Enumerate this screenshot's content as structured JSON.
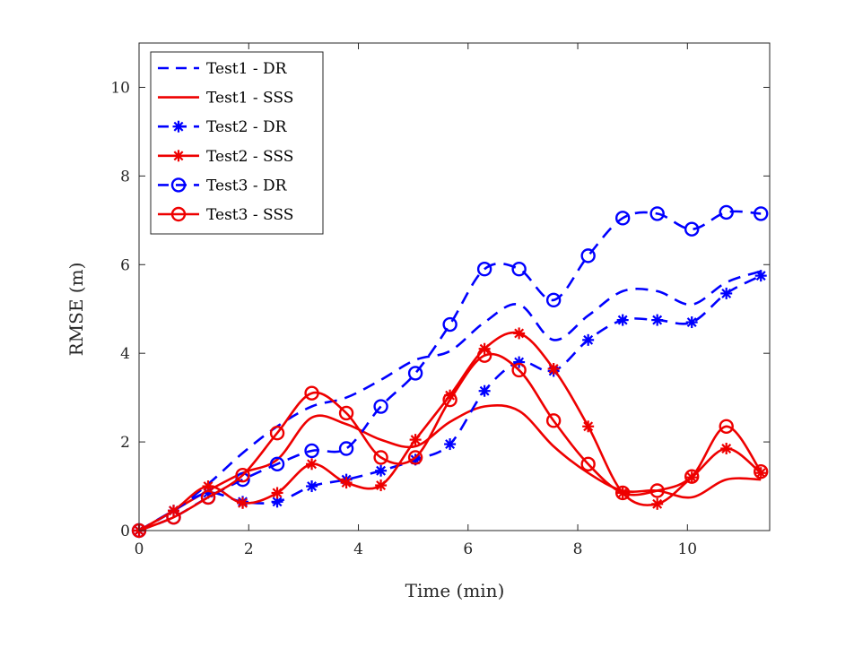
{
  "chart_data": {
    "type": "line",
    "title": "",
    "xlabel": "Time (min)",
    "ylabel": "RMSE (m)",
    "xlim": [
      0,
      11.5
    ],
    "ylim": [
      0,
      11
    ],
    "xticks": [
      0,
      2,
      4,
      6,
      8,
      10
    ],
    "yticks": [
      0,
      2,
      4,
      6,
      8,
      10
    ],
    "xtick_labels": [
      "0",
      "2",
      "4",
      "6",
      "8",
      "10"
    ],
    "ytick_labels": [
      "0",
      "2",
      "4",
      "6",
      "8",
      "10"
    ],
    "grid": false,
    "legend_position": "top-left",
    "colors": {
      "dr": "#0000ff",
      "sss": "#ee0000",
      "axis": "#262626"
    },
    "series": [
      {
        "name": "Test1 - DR",
        "group": "dr",
        "dash": "dashed",
        "marker": "none",
        "x": [
          0,
          0.63,
          1.26,
          1.89,
          2.52,
          3.15,
          3.78,
          4.41,
          5.04,
          5.67,
          6.3,
          6.93,
          7.56,
          8.19,
          8.82,
          9.45,
          10.08,
          10.71,
          11.34
        ],
        "y": [
          0,
          0.45,
          1.05,
          1.75,
          2.35,
          2.8,
          3.0,
          3.4,
          3.85,
          4.05,
          4.7,
          5.1,
          4.3,
          4.85,
          5.4,
          5.4,
          5.1,
          5.6,
          5.85
        ]
      },
      {
        "name": "Test1 - SSS",
        "group": "sss",
        "dash": "solid",
        "marker": "none",
        "x": [
          0,
          0.63,
          1.26,
          1.89,
          2.52,
          3.15,
          3.78,
          4.41,
          5.04,
          5.67,
          6.3,
          6.93,
          7.56,
          8.19,
          8.82,
          9.45,
          10.08,
          10.71,
          11.34
        ],
        "y": [
          0,
          0.45,
          0.9,
          1.3,
          1.6,
          2.55,
          2.4,
          2.05,
          1.9,
          2.45,
          2.8,
          2.7,
          1.9,
          1.3,
          0.9,
          0.9,
          0.75,
          1.15,
          1.15
        ]
      },
      {
        "name": "Test2 - DR",
        "group": "dr",
        "dash": "dashed",
        "marker": "star",
        "x": [
          0,
          0.63,
          1.26,
          1.89,
          2.52,
          3.15,
          3.78,
          4.41,
          5.04,
          5.67,
          6.3,
          6.93,
          7.56,
          8.19,
          8.82,
          9.45,
          10.08,
          10.71,
          11.34
        ],
        "y": [
          0,
          0.45,
          0.85,
          0.65,
          0.65,
          1.0,
          1.15,
          1.35,
          1.6,
          1.95,
          3.15,
          3.8,
          3.6,
          4.3,
          4.75,
          4.75,
          4.7,
          5.35,
          5.75
        ]
      },
      {
        "name": "Test2 - SSS",
        "group": "sss",
        "dash": "solid",
        "marker": "star",
        "x": [
          0,
          0.63,
          1.26,
          1.89,
          2.52,
          3.15,
          3.78,
          4.41,
          5.04,
          5.67,
          6.3,
          6.93,
          7.56,
          8.19,
          8.82,
          9.45,
          10.08,
          10.71,
          11.34
        ],
        "y": [
          0,
          0.45,
          1.0,
          0.62,
          0.85,
          1.5,
          1.08,
          1.02,
          2.05,
          3.05,
          4.1,
          4.45,
          3.65,
          2.35,
          0.85,
          0.6,
          1.2,
          1.85,
          1.3
        ]
      },
      {
        "name": "Test3 - DR",
        "group": "dr",
        "dash": "dashed",
        "marker": "circle",
        "x": [
          0,
          0.63,
          1.26,
          1.89,
          2.52,
          3.15,
          3.78,
          4.41,
          5.04,
          5.67,
          6.3,
          6.93,
          7.56,
          8.19,
          8.82,
          9.45,
          10.08,
          10.71,
          11.34
        ],
        "y": [
          0,
          0.3,
          0.75,
          1.15,
          1.5,
          1.8,
          1.85,
          2.8,
          3.55,
          4.65,
          5.9,
          5.9,
          5.2,
          6.2,
          7.05,
          7.15,
          6.8,
          7.18,
          7.15
        ]
      },
      {
        "name": "Test3 - SSS",
        "group": "sss",
        "dash": "solid",
        "marker": "circle",
        "x": [
          0,
          0.63,
          1.26,
          1.89,
          2.52,
          3.15,
          3.78,
          4.41,
          5.04,
          5.67,
          6.3,
          6.93,
          7.56,
          8.19,
          8.82,
          9.45,
          10.08,
          10.71,
          11.34
        ],
        "y": [
          0,
          0.3,
          0.75,
          1.25,
          2.2,
          3.1,
          2.65,
          1.65,
          1.65,
          2.95,
          3.95,
          3.62,
          2.48,
          1.5,
          0.85,
          0.9,
          1.22,
          2.35,
          1.33
        ]
      }
    ]
  }
}
